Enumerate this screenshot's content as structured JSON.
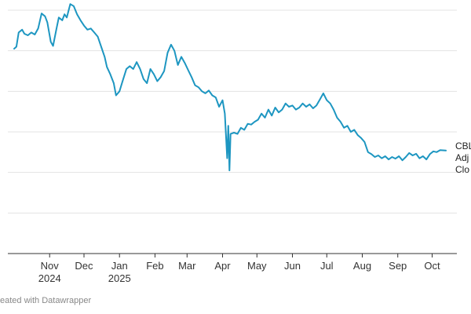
{
  "chart_data": {
    "type": "line",
    "title": "",
    "xlabel": "",
    "ylabel": "",
    "x_ticks": [
      {
        "line1": "Nov",
        "line2": "2024",
        "date": "2024-11-01"
      },
      {
        "line1": "Dec",
        "line2": "",
        "date": "2024-12-01"
      },
      {
        "line1": "Jan",
        "line2": "2025",
        "date": "2025-01-01"
      },
      {
        "line1": "Feb",
        "line2": "",
        "date": "2025-02-01"
      },
      {
        "line1": "Mar",
        "line2": "",
        "date": "2025-03-01"
      },
      {
        "line1": "Apr",
        "line2": "",
        "date": "2025-04-01"
      },
      {
        "line1": "May",
        "line2": "",
        "date": "2025-05-01"
      },
      {
        "line1": "Jun",
        "line2": "",
        "date": "2025-06-01"
      },
      {
        "line1": "Jul",
        "line2": "",
        "date": "2025-07-01"
      },
      {
        "line1": "Aug",
        "line2": "",
        "date": "2025-08-01"
      },
      {
        "line1": "Sep",
        "line2": "",
        "date": "2025-09-01"
      },
      {
        "line1": "Oct",
        "line2": "",
        "date": "2025-10-01"
      }
    ],
    "xlim": [
      "2024-10-01",
      "2025-10-13"
    ],
    "ylim": [
      0,
      6
    ],
    "grid": true,
    "series": [
      {
        "label_lines": [
          "CBL",
          "Adj",
          "Clo"
        ],
        "color": "#1d96c1",
        "points": [
          [
            "2024-10-01",
            5.05
          ],
          [
            "2024-10-03",
            5.1
          ],
          [
            "2024-10-05",
            5.45
          ],
          [
            "2024-10-08",
            5.52
          ],
          [
            "2024-10-10",
            5.42
          ],
          [
            "2024-10-13",
            5.38
          ],
          [
            "2024-10-16",
            5.45
          ],
          [
            "2024-10-19",
            5.4
          ],
          [
            "2024-10-22",
            5.55
          ],
          [
            "2024-10-25",
            5.92
          ],
          [
            "2024-10-28",
            5.85
          ],
          [
            "2024-10-30",
            5.7
          ],
          [
            "2024-11-02",
            5.22
          ],
          [
            "2024-11-04",
            5.12
          ],
          [
            "2024-11-07",
            5.55
          ],
          [
            "2024-11-09",
            5.82
          ],
          [
            "2024-11-12",
            5.75
          ],
          [
            "2024-11-14",
            5.9
          ],
          [
            "2024-11-16",
            5.82
          ],
          [
            "2024-11-19",
            6.15
          ],
          [
            "2024-11-22",
            6.1
          ],
          [
            "2024-11-25",
            5.9
          ],
          [
            "2024-11-28",
            5.75
          ],
          [
            "2024-12-01",
            5.62
          ],
          [
            "2024-12-04",
            5.52
          ],
          [
            "2024-12-07",
            5.55
          ],
          [
            "2024-12-10",
            5.45
          ],
          [
            "2024-12-13",
            5.35
          ],
          [
            "2024-12-16",
            5.1
          ],
          [
            "2024-12-19",
            4.85
          ],
          [
            "2024-12-21",
            4.6
          ],
          [
            "2024-12-24",
            4.42
          ],
          [
            "2024-12-27",
            4.2
          ],
          [
            "2024-12-29",
            3.9
          ],
          [
            "2025-01-01",
            4.0
          ],
          [
            "2025-01-04",
            4.28
          ],
          [
            "2025-01-07",
            4.55
          ],
          [
            "2025-01-10",
            4.62
          ],
          [
            "2025-01-13",
            4.55
          ],
          [
            "2025-01-16",
            4.72
          ],
          [
            "2025-01-19",
            4.55
          ],
          [
            "2025-01-22",
            4.3
          ],
          [
            "2025-01-25",
            4.2
          ],
          [
            "2025-01-28",
            4.55
          ],
          [
            "2025-01-31",
            4.42
          ],
          [
            "2025-02-03",
            4.25
          ],
          [
            "2025-02-06",
            4.35
          ],
          [
            "2025-02-09",
            4.5
          ],
          [
            "2025-02-12",
            4.95
          ],
          [
            "2025-02-15",
            5.15
          ],
          [
            "2025-02-18",
            5.0
          ],
          [
            "2025-02-21",
            4.65
          ],
          [
            "2025-02-24",
            4.85
          ],
          [
            "2025-02-27",
            4.7
          ],
          [
            "2025-03-02",
            4.52
          ],
          [
            "2025-03-05",
            4.35
          ],
          [
            "2025-03-08",
            4.15
          ],
          [
            "2025-03-11",
            4.1
          ],
          [
            "2025-03-14",
            4.0
          ],
          [
            "2025-03-17",
            3.95
          ],
          [
            "2025-03-20",
            4.02
          ],
          [
            "2025-03-23",
            3.9
          ],
          [
            "2025-03-26",
            3.85
          ],
          [
            "2025-03-29",
            3.62
          ],
          [
            "2025-04-01",
            3.78
          ],
          [
            "2025-04-03",
            3.45
          ],
          [
            "2025-04-05",
            2.35
          ],
          [
            "2025-04-06",
            3.15
          ],
          [
            "2025-04-07",
            2.05
          ],
          [
            "2025-04-08",
            2.95
          ],
          [
            "2025-04-11",
            2.98
          ],
          [
            "2025-04-14",
            2.95
          ],
          [
            "2025-04-17",
            3.1
          ],
          [
            "2025-04-20",
            3.05
          ],
          [
            "2025-04-23",
            3.2
          ],
          [
            "2025-04-26",
            3.18
          ],
          [
            "2025-04-29",
            3.25
          ],
          [
            "2025-05-02",
            3.3
          ],
          [
            "2025-05-05",
            3.45
          ],
          [
            "2025-05-08",
            3.35
          ],
          [
            "2025-05-11",
            3.55
          ],
          [
            "2025-05-14",
            3.4
          ],
          [
            "2025-05-17",
            3.6
          ],
          [
            "2025-05-20",
            3.48
          ],
          [
            "2025-05-23",
            3.55
          ],
          [
            "2025-05-26",
            3.7
          ],
          [
            "2025-05-29",
            3.62
          ],
          [
            "2025-06-01",
            3.65
          ],
          [
            "2025-06-04",
            3.55
          ],
          [
            "2025-06-07",
            3.6
          ],
          [
            "2025-06-10",
            3.7
          ],
          [
            "2025-06-13",
            3.62
          ],
          [
            "2025-06-16",
            3.68
          ],
          [
            "2025-06-19",
            3.58
          ],
          [
            "2025-06-22",
            3.65
          ],
          [
            "2025-06-25",
            3.8
          ],
          [
            "2025-06-28",
            3.95
          ],
          [
            "2025-07-01",
            3.78
          ],
          [
            "2025-07-04",
            3.7
          ],
          [
            "2025-07-07",
            3.55
          ],
          [
            "2025-07-10",
            3.35
          ],
          [
            "2025-07-13",
            3.25
          ],
          [
            "2025-07-16",
            3.1
          ],
          [
            "2025-07-19",
            3.15
          ],
          [
            "2025-07-22",
            3.0
          ],
          [
            "2025-07-25",
            3.05
          ],
          [
            "2025-07-28",
            2.92
          ],
          [
            "2025-07-31",
            2.85
          ],
          [
            "2025-08-03",
            2.75
          ],
          [
            "2025-08-06",
            2.5
          ],
          [
            "2025-08-09",
            2.45
          ],
          [
            "2025-08-12",
            2.38
          ],
          [
            "2025-08-15",
            2.42
          ],
          [
            "2025-08-18",
            2.35
          ],
          [
            "2025-08-21",
            2.4
          ],
          [
            "2025-08-24",
            2.32
          ],
          [
            "2025-08-27",
            2.38
          ],
          [
            "2025-08-30",
            2.34
          ],
          [
            "2025-09-02",
            2.4
          ],
          [
            "2025-09-05",
            2.3
          ],
          [
            "2025-09-08",
            2.38
          ],
          [
            "2025-09-11",
            2.48
          ],
          [
            "2025-09-14",
            2.42
          ],
          [
            "2025-09-17",
            2.46
          ],
          [
            "2025-09-20",
            2.35
          ],
          [
            "2025-09-23",
            2.4
          ],
          [
            "2025-09-26",
            2.32
          ],
          [
            "2025-09-29",
            2.45
          ],
          [
            "2025-10-02",
            2.52
          ],
          [
            "2025-10-05",
            2.5
          ],
          [
            "2025-10-08",
            2.55
          ],
          [
            "2025-10-13",
            2.54
          ]
        ]
      }
    ]
  },
  "footer": {
    "credit": "eated with Datawrapper"
  }
}
